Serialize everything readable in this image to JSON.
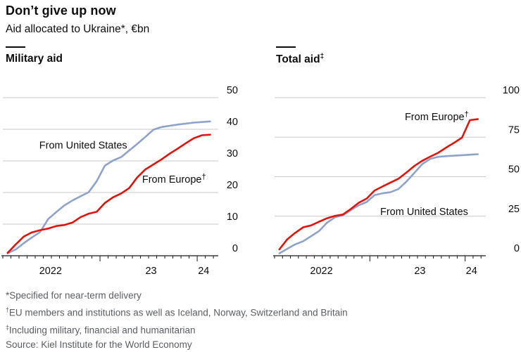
{
  "header": {
    "title": "Don’t give up now",
    "subtitle": "Aid allocated to Ukraine*, €bn"
  },
  "colors": {
    "europe_red": "#e3120b",
    "us_blue": "#8ea3cc",
    "grid": "#c9c9c9",
    "axis": "#1a1a1a",
    "text": "#0e0e0e",
    "footnote": "#5b5e63"
  },
  "chart_data": [
    {
      "type": "line",
      "title": "Military aid",
      "unit": "€bn",
      "x": [
        "Jan 2022",
        "Feb 2022",
        "Mar 2022",
        "Apr 2022",
        "May 2022",
        "Jun 2022",
        "Jul 2022",
        "Aug 2022",
        "Sep 2022",
        "Oct 2022",
        "Nov 2022",
        "Dec 2022",
        "Jan 2023",
        "Feb 2023",
        "Mar 2023",
        "Apr 2023",
        "May 2023",
        "Jun 2023",
        "Jul 2023",
        "Aug 2023",
        "Sep 2023",
        "Oct 2023",
        "Nov 2023",
        "Dec 2023",
        "Jan 2024",
        "Feb 2024"
      ],
      "ylim": [
        0,
        50
      ],
      "yticks": [
        0,
        10,
        20,
        30,
        40,
        50
      ],
      "xtick_year_labels": [
        {
          "text": "2022",
          "month": 5.9
        },
        {
          "text": "23",
          "month": 18.3
        },
        {
          "text": "24",
          "month": 24.8
        }
      ],
      "grid": true,
      "legend_position": "inline-labels",
      "series": [
        {
          "name": "From United States",
          "color_key": "us_blue",
          "values": [
            0.8,
            2.0,
            4.0,
            5.8,
            7.5,
            11.6,
            13.8,
            15.9,
            17.5,
            18.8,
            20.1,
            23.6,
            28.5,
            30.1,
            31.2,
            33.3,
            35.4,
            37.6,
            39.9,
            40.7,
            41.1,
            41.5,
            41.8,
            42.1,
            42.3,
            42.5
          ]
        },
        {
          "name": "From Europe†",
          "color_key": "europe_red",
          "values": [
            0.9,
            3.6,
            6.1,
            7.4,
            8.1,
            8.6,
            9.4,
            9.7,
            10.5,
            12.2,
            13.3,
            13.9,
            16.7,
            18.5,
            19.7,
            21.4,
            24.8,
            27.3,
            28.9,
            30.5,
            32.3,
            33.9,
            35.6,
            37.2,
            38.1,
            38.3
          ]
        }
      ],
      "annotations": [
        {
          "text": "From United States",
          "month": 4.5,
          "value": 35.0
        },
        {
          "text": "From Europe†",
          "month": 17.2,
          "value": 24.2
        }
      ]
    },
    {
      "type": "line",
      "title": "Total aid‡",
      "unit": "€bn",
      "x": [
        "Jan 2022",
        "Feb 2022",
        "Mar 2022",
        "Apr 2022",
        "May 2022",
        "Jun 2022",
        "Jul 2022",
        "Aug 2022",
        "Sep 2022",
        "Oct 2022",
        "Nov 2022",
        "Dec 2022",
        "Jan 2023",
        "Feb 2023",
        "Mar 2023",
        "Apr 2023",
        "May 2023",
        "Jun 2023",
        "Jul 2023",
        "Aug 2023",
        "Sep 2023",
        "Oct 2023",
        "Nov 2023",
        "Dec 2023",
        "Jan 2024",
        "Feb 2024"
      ],
      "ylim": [
        0,
        100
      ],
      "yticks": [
        0,
        25,
        50,
        75,
        100
      ],
      "xtick_year_labels": [
        {
          "text": "2022",
          "month": 5.9
        },
        {
          "text": "23",
          "month": 18.3
        },
        {
          "text": "24",
          "month": 24.8
        }
      ],
      "grid": true,
      "legend_position": "inline-labels",
      "series": [
        {
          "name": "From United States",
          "color_key": "us_blue",
          "values": [
            1.5,
            4.4,
            7.2,
            9.2,
            12.4,
            15.6,
            20.9,
            24.3,
            25.6,
            28.9,
            31.9,
            34.0,
            38.4,
            39.5,
            40.2,
            42.2,
            46.9,
            52.4,
            58.0,
            61.3,
            62.6,
            63.0,
            63.3,
            63.6,
            63.9,
            64.2
          ]
        },
        {
          "name": "From Europe†",
          "color_key": "europe_red",
          "values": [
            4.0,
            10.4,
            14.5,
            18.0,
            19.2,
            21.5,
            23.7,
            25.2,
            26.1,
            29.6,
            33.5,
            36.2,
            41.3,
            43.8,
            46.3,
            48.7,
            52.6,
            56.8,
            60.1,
            62.7,
            65.1,
            68.4,
            71.4,
            74.7,
            85.8,
            86.4
          ]
        }
      ],
      "annotations": [
        {
          "text": "From Europe†",
          "month": 16.4,
          "value": 88.0
        },
        {
          "text": "From United States",
          "month": 13.3,
          "value": 28.0
        }
      ]
    }
  ],
  "footnotes": [
    "*Specified for near-term delivery",
    "†EU members and institutions as well as Iceland, Norway, Switzerland and Britain",
    "‡Including military, financial and humanitarian",
    "Source: Kiel Institute for the World Economy"
  ]
}
